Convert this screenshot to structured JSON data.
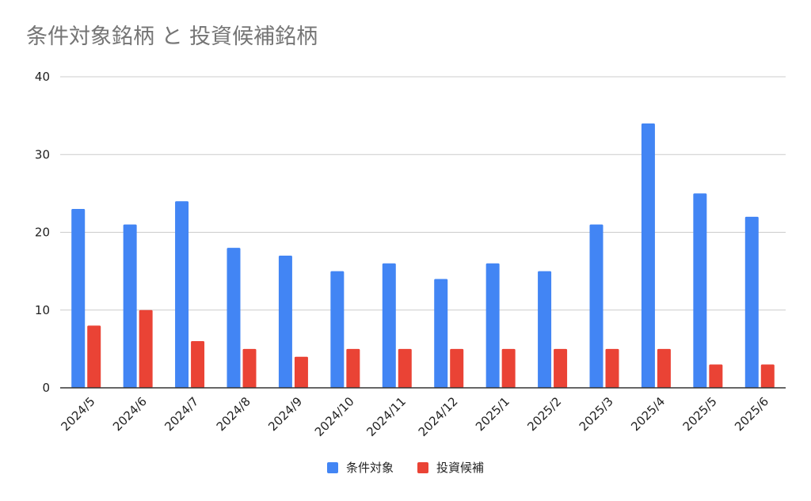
{
  "chart_data": {
    "type": "bar",
    "title": "条件対象銘柄 と 投資候補銘柄",
    "categories": [
      "2024/5",
      "2024/6",
      "2024/7",
      "2024/8",
      "2024/9",
      "2024/10",
      "2024/11",
      "2024/12",
      "2025/1",
      "2025/2",
      "2025/3",
      "2025/4",
      "2025/5",
      "2025/6"
    ],
    "series": [
      {
        "name": "条件対象",
        "color": "#4285f4",
        "values": [
          23,
          21,
          24,
          18,
          17,
          15,
          16,
          14,
          16,
          15,
          21,
          34,
          25,
          22
        ]
      },
      {
        "name": "投資候補",
        "color": "#ea4335",
        "values": [
          8,
          10,
          6,
          5,
          4,
          5,
          5,
          5,
          5,
          5,
          5,
          5,
          3,
          3
        ]
      }
    ],
    "ylim": [
      0,
      40
    ],
    "yticks": [
      0,
      10,
      20,
      30,
      40
    ],
    "grid": true,
    "legend": "bottom",
    "xlabel": "",
    "ylabel": ""
  }
}
